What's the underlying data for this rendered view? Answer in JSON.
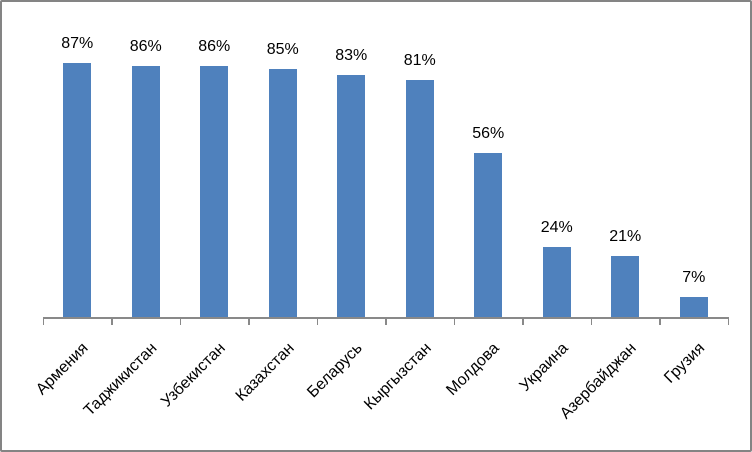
{
  "chart": {
    "background": "#FFFFFF",
    "frame_border_color": "#848484"
  },
  "chart_data": {
    "type": "bar",
    "title": "",
    "categories": [
      "Армения",
      "Таджикистан",
      "Узбекистан",
      "Казахстан",
      "Беларусь",
      "Кыргызстан",
      "Молдова",
      "Украина",
      "Азербайджан",
      "Грузия"
    ],
    "values": [
      87,
      86,
      86,
      85,
      83,
      81,
      56,
      24,
      21,
      7
    ],
    "value_labels": [
      "87%",
      "86%",
      "86%",
      "85%",
      "83%",
      "81%",
      "56%",
      "24%",
      "21%",
      "7%"
    ],
    "xlabel": "",
    "ylabel": "",
    "ylim": [
      0,
      100
    ],
    "grid": false,
    "legend": "none",
    "y_axis_visible": false,
    "category_label_rotation_deg": 45,
    "bar_color": "#4F81BD",
    "axis_color": "#898989",
    "text_color": "#000000"
  }
}
